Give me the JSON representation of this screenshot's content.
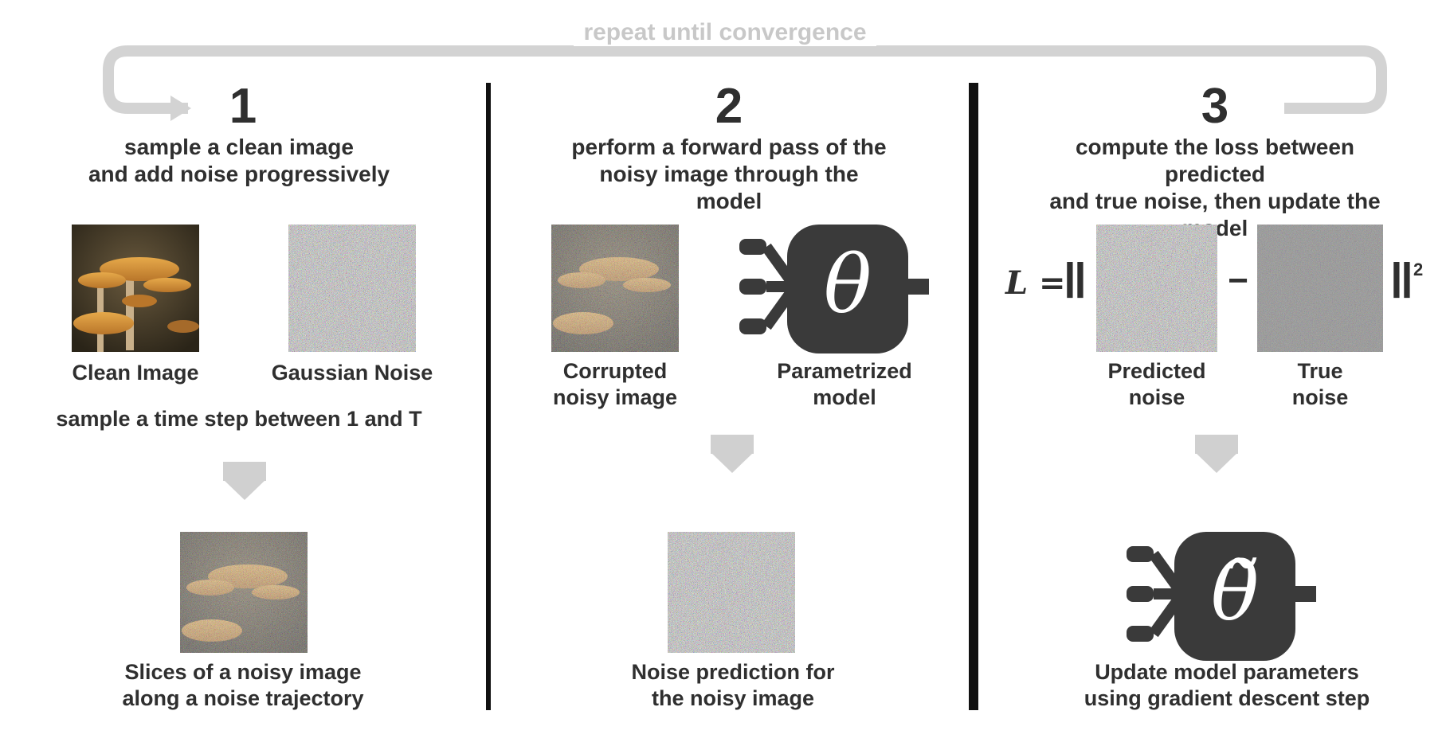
{
  "loop": {
    "label": "repeat until convergence"
  },
  "panels": [
    {
      "number": "1",
      "heading_line1": "sample a clean image",
      "heading_line2": "and add noise progressively",
      "image_label_a": "Clean Image",
      "image_label_b": "Gaussian Noise",
      "step_label": "sample a time step between 1 and T",
      "result_line1": "Slices of a noisy image",
      "result_line2": "along a noise trajectory"
    },
    {
      "number": "2",
      "heading_line1": "perform a forward pass of the",
      "heading_line2": "noisy image through the model",
      "image_label_a_line1": "Corrupted",
      "image_label_a_line2": "noisy image",
      "model_label_line1": "Parametrized",
      "model_label_line2": "model",
      "model_symbol": "θ",
      "result_line1": "Noise prediction for",
      "result_line2": "the noisy image"
    },
    {
      "number": "3",
      "heading_line1": "compute the loss between predicted",
      "heading_line2": "and true noise, then update the model",
      "loss_symbol": "L =",
      "norm_open": "‖",
      "minus": "−",
      "norm_close": "‖",
      "power": "2",
      "label_a_line1": "Predicted",
      "label_a_line2": "noise",
      "label_b_line1": "True",
      "label_b_line2": "noise",
      "model_symbol": "θ̃",
      "result_line1": "Update model parameters",
      "result_line2": "using gradient descent step"
    }
  ]
}
